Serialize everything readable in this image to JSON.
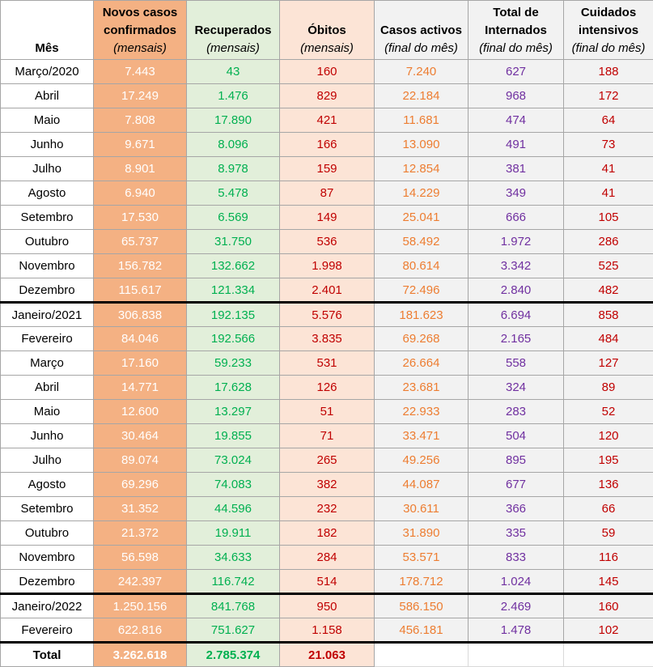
{
  "colors": {
    "confirmed_bg": "#f4b183",
    "recovered_bg": "#e2efda",
    "deaths_bg": "#fce4d6",
    "other_bg": "#f2f2f2",
    "recovered_text": "#00b050",
    "deaths_text": "#c00000",
    "active_text": "#ed7d31",
    "hospital_text": "#7030a0"
  },
  "headers": {
    "month": "Mês",
    "confirmed": {
      "line1": "Novos casos",
      "line2": "confirmados",
      "sub": "(mensais)"
    },
    "recovered": {
      "line1": "",
      "line2": "Recuperados",
      "sub": "(mensais)"
    },
    "deaths": {
      "line1": "",
      "line2": "Óbitos",
      "sub": "(mensais)"
    },
    "active": {
      "line1": "",
      "line2": "Casos activos",
      "sub": "(final do mês)"
    },
    "hospital": {
      "line1": "Total de",
      "line2": "Internados",
      "sub": "(final do mês)"
    },
    "icu": {
      "line1": "Cuidados",
      "line2": "intensivos",
      "sub": "(final do mês)"
    }
  },
  "rows": [
    {
      "month": "Março/2020",
      "confirmed": "7.443",
      "recovered": "43",
      "deaths": "160",
      "active": "7.240",
      "hospital": "627",
      "icu": "188"
    },
    {
      "month": "Abril",
      "confirmed": "17.249",
      "recovered": "1.476",
      "deaths": "829",
      "active": "22.184",
      "hospital": "968",
      "icu": "172"
    },
    {
      "month": "Maio",
      "confirmed": "7.808",
      "recovered": "17.890",
      "deaths": "421",
      "active": "11.681",
      "hospital": "474",
      "icu": "64"
    },
    {
      "month": "Junho",
      "confirmed": "9.671",
      "recovered": "8.096",
      "deaths": "166",
      "active": "13.090",
      "hospital": "491",
      "icu": "73"
    },
    {
      "month": "Julho",
      "confirmed": "8.901",
      "recovered": "8.978",
      "deaths": "159",
      "active": "12.854",
      "hospital": "381",
      "icu": "41"
    },
    {
      "month": "Agosto",
      "confirmed": "6.940",
      "recovered": "5.478",
      "deaths": "87",
      "active": "14.229",
      "hospital": "349",
      "icu": "41"
    },
    {
      "month": "Setembro",
      "confirmed": "17.530",
      "recovered": "6.569",
      "deaths": "149",
      "active": "25.041",
      "hospital": "666",
      "icu": "105"
    },
    {
      "month": "Outubro",
      "confirmed": "65.737",
      "recovered": "31.750",
      "deaths": "536",
      "active": "58.492",
      "hospital": "1.972",
      "icu": "286"
    },
    {
      "month": "Novembro",
      "confirmed": "156.782",
      "recovered": "132.662",
      "deaths": "1.998",
      "active": "80.614",
      "hospital": "3.342",
      "icu": "525"
    },
    {
      "month": "Dezembro",
      "confirmed": "115.617",
      "recovered": "121.334",
      "deaths": "2.401",
      "active": "72.496",
      "hospital": "2.840",
      "icu": "482"
    },
    {
      "month": "Janeiro/2021",
      "confirmed": "306.838",
      "recovered": "192.135",
      "deaths": "5.576",
      "active": "181.623",
      "hospital": "6.694",
      "icu": "858"
    },
    {
      "month": "Fevereiro",
      "confirmed": "84.046",
      "recovered": "192.566",
      "deaths": "3.835",
      "active": "69.268",
      "hospital": "2.165",
      "icu": "484"
    },
    {
      "month": "Março",
      "confirmed": "17.160",
      "recovered": "59.233",
      "deaths": "531",
      "active": "26.664",
      "hospital": "558",
      "icu": "127"
    },
    {
      "month": "Abril",
      "confirmed": "14.771",
      "recovered": "17.628",
      "deaths": "126",
      "active": "23.681",
      "hospital": "324",
      "icu": "89"
    },
    {
      "month": "Maio",
      "confirmed": "12.600",
      "recovered": "13.297",
      "deaths": "51",
      "active": "22.933",
      "hospital": "283",
      "icu": "52"
    },
    {
      "month": "Junho",
      "confirmed": "30.464",
      "recovered": "19.855",
      "deaths": "71",
      "active": "33.471",
      "hospital": "504",
      "icu": "120"
    },
    {
      "month": "Julho",
      "confirmed": "89.074",
      "recovered": "73.024",
      "deaths": "265",
      "active": "49.256",
      "hospital": "895",
      "icu": "195"
    },
    {
      "month": "Agosto",
      "confirmed": "69.296",
      "recovered": "74.083",
      "deaths": "382",
      "active": "44.087",
      "hospital": "677",
      "icu": "136"
    },
    {
      "month": "Setembro",
      "confirmed": "31.352",
      "recovered": "44.596",
      "deaths": "232",
      "active": "30.611",
      "hospital": "366",
      "icu": "66"
    },
    {
      "month": "Outubro",
      "confirmed": "21.372",
      "recovered": "19.911",
      "deaths": "182",
      "active": "31.890",
      "hospital": "335",
      "icu": "59"
    },
    {
      "month": "Novembro",
      "confirmed": "56.598",
      "recovered": "34.633",
      "deaths": "284",
      "active": "53.571",
      "hospital": "833",
      "icu": "116"
    },
    {
      "month": "Dezembro",
      "confirmed": "242.397",
      "recovered": "116.742",
      "deaths": "514",
      "active": "178.712",
      "hospital": "1.024",
      "icu": "145"
    },
    {
      "month": "Janeiro/2022",
      "confirmed": "1.250.156",
      "recovered": "841.768",
      "deaths": "950",
      "active": "586.150",
      "hospital": "2.469",
      "icu": "160"
    },
    {
      "month": "Fevereiro",
      "confirmed": "622.816",
      "recovered": "751.627",
      "deaths": "1.158",
      "active": "456.181",
      "hospital": "1.478",
      "icu": "102"
    }
  ],
  "total": {
    "label": "Total",
    "confirmed": "3.262.618",
    "recovered": "2.785.374",
    "deaths": "21.063"
  }
}
